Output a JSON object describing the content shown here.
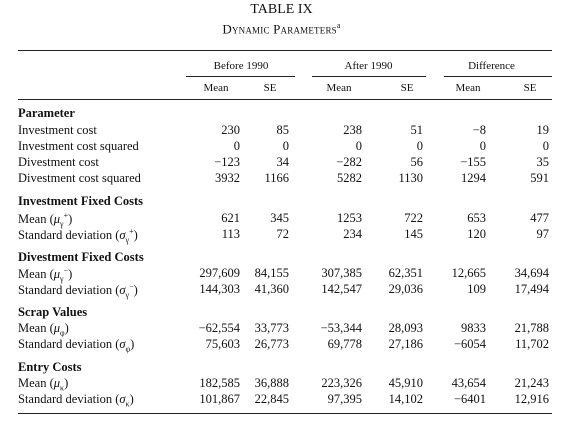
{
  "title": "TABLE IX",
  "subtitle": "Dynamic Parameters",
  "subtitle_note": "a",
  "groups": [
    "Before 1990",
    "After 1990",
    "Difference"
  ],
  "subheaders": [
    "Mean",
    "SE",
    "Mean",
    "SE",
    "Mean",
    "SE"
  ],
  "sections": [
    {
      "title": "Parameter",
      "rows": [
        {
          "label": "Investment cost",
          "values": [
            "230",
            "85",
            "238",
            "51",
            "−8",
            "19"
          ]
        },
        {
          "label": "Investment cost squared",
          "values": [
            "0",
            "0",
            "0",
            "0",
            "0",
            "0"
          ]
        },
        {
          "label": "Divestment cost",
          "values": [
            "−123",
            "34",
            "−282",
            "56",
            "−155",
            "35"
          ]
        },
        {
          "label": "Divestment cost squared",
          "values": [
            "3932",
            "1166",
            "5282",
            "1130",
            "1294",
            "591"
          ]
        }
      ]
    },
    {
      "title": "Investment Fixed Costs",
      "rows": [
        {
          "label": "Mean (μ₀⁺)",
          "values": [
            "621",
            "345",
            "1253",
            "722",
            "653",
            "477"
          ]
        },
        {
          "label": "Standard deviation (σ₀⁺)",
          "values": [
            "113",
            "72",
            "234",
            "145",
            "120",
            "97"
          ]
        }
      ]
    },
    {
      "title": "Divestment Fixed Costs",
      "rows": [
        {
          "label": "Mean (μ₀⁻)",
          "values": [
            "297,609",
            "84,155",
            "307,385",
            "62,351",
            "12,665",
            "34,694"
          ]
        },
        {
          "label": "Standard deviation (σ₀⁻)",
          "values": [
            "144,303",
            "41,360",
            "142,547",
            "29,036",
            "109",
            "17,494"
          ]
        }
      ]
    },
    {
      "title": "Scrap Values",
      "rows": [
        {
          "label": "Mean (μφ)",
          "values": [
            "−62,554",
            "33,773",
            "−53,344",
            "28,093",
            "9833",
            "21,788"
          ]
        },
        {
          "label": "Standard deviation (σφ)",
          "values": [
            "75,603",
            "26,773",
            "69,778",
            "27,186",
            "−6054",
            "11,702"
          ]
        }
      ]
    },
    {
      "title": "Entry Costs",
      "rows": [
        {
          "label": "Mean (μκ)",
          "values": [
            "182,585",
            "36,888",
            "223,326",
            "45,910",
            "43,654",
            "21,243"
          ]
        },
        {
          "label": "Standard deviation (σκ)",
          "values": [
            "101,867",
            "22,845",
            "97,395",
            "14,102",
            "−6401",
            "12,916"
          ]
        }
      ]
    }
  ]
}
